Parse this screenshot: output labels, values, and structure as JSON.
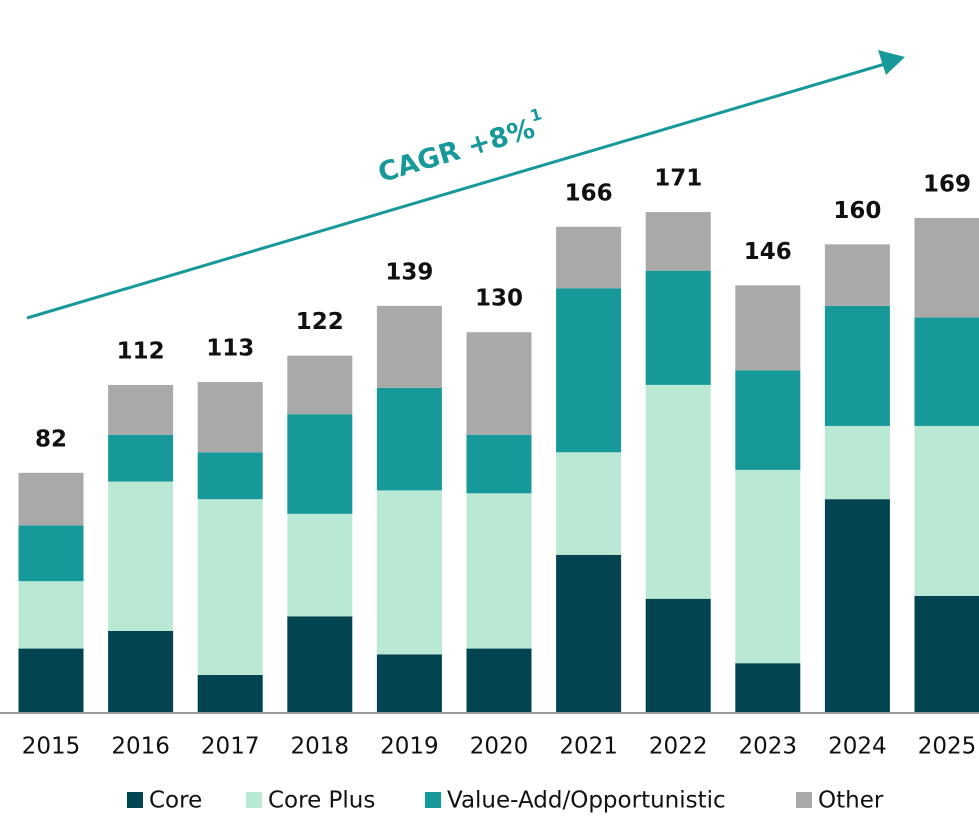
{
  "chart_data": {
    "type": "stacked_bar",
    "annotation": "CAGR +8%",
    "annotation_footnote": "1",
    "categories": [
      "2015",
      "2016",
      "2017",
      "2018",
      "2019",
      "2020",
      "2021",
      "2022",
      "2023",
      "2024",
      "2025"
    ],
    "series": [
      {
        "name": "Core",
        "color": "#02444f",
        "values": [
          22,
          28,
          13,
          33,
          20,
          22,
          54,
          39,
          17,
          73,
          40
        ]
      },
      {
        "name": "Core Plus",
        "color": "#b9e8d5",
        "values": [
          23,
          51,
          60,
          35,
          56,
          53,
          35,
          73,
          66,
          25,
          58
        ]
      },
      {
        "name": "Value-Add/Opportunistic",
        "color": "#17999a",
        "values": [
          19,
          16,
          16,
          34,
          35,
          20,
          56,
          39,
          34,
          41,
          37
        ]
      },
      {
        "name": "Other",
        "color": "#a9a9a9",
        "values": [
          18,
          17,
          24,
          20,
          28,
          35,
          21,
          20,
          29,
          21,
          34
        ]
      }
    ],
    "totals": [
      82,
      112,
      113,
      122,
      139,
      130,
      166,
      171,
      146,
      160,
      169
    ],
    "ylim": [
      0,
      240
    ]
  }
}
